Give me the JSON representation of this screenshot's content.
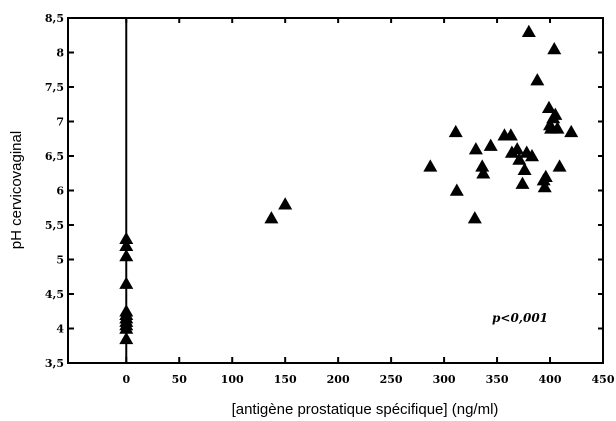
{
  "chart_data": {
    "type": "scatter",
    "xlabel": "[antigène prostatique spécifique] (ng/ml)",
    "ylabel": "pH cervicovaginal",
    "xlim": [
      -55,
      450
    ],
    "ylim": [
      3.5,
      8.5
    ],
    "xticks": [
      0,
      50,
      100,
      150,
      200,
      250,
      300,
      350,
      400,
      450
    ],
    "xtick_labels": [
      "0",
      "50",
      "100",
      "150",
      "200",
      "250",
      "300",
      "350",
      "400",
      "450"
    ],
    "yticks": [
      3.5,
      4,
      4.5,
      5,
      5.5,
      6,
      6.5,
      7,
      7.5,
      8,
      8.5
    ],
    "ytick_labels": [
      "3,5",
      "4",
      "4,5",
      "5",
      "5,5",
      "6",
      "6,5",
      "7",
      "7,5",
      "8",
      "8,5"
    ],
    "annotation": "p<0,001",
    "vertical_reference_x": 0,
    "marker": "triangle",
    "points": [
      [
        0,
        5.3
      ],
      [
        0,
        5.2
      ],
      [
        0,
        5.05
      ],
      [
        0,
        4.65
      ],
      [
        0,
        4.25
      ],
      [
        0,
        4.2
      ],
      [
        0,
        4.15
      ],
      [
        0,
        4.1
      ],
      [
        0,
        4.05
      ],
      [
        0,
        4.0
      ],
      [
        0,
        3.85
      ],
      [
        137,
        5.6
      ],
      [
        150,
        5.8
      ],
      [
        287,
        6.35
      ],
      [
        311,
        6.85
      ],
      [
        312,
        6.0
      ],
      [
        329,
        5.6
      ],
      [
        330,
        6.6
      ],
      [
        336,
        6.35
      ],
      [
        337,
        6.25
      ],
      [
        344,
        6.65
      ],
      [
        357,
        6.8
      ],
      [
        363,
        6.8
      ],
      [
        364,
        6.55
      ],
      [
        369,
        6.6
      ],
      [
        371,
        6.45
      ],
      [
        374,
        6.1
      ],
      [
        376,
        6.3
      ],
      [
        378,
        6.55
      ],
      [
        380,
        8.3
      ],
      [
        383,
        6.5
      ],
      [
        388,
        7.6
      ],
      [
        394,
        6.15
      ],
      [
        395,
        6.05
      ],
      [
        396,
        6.2
      ],
      [
        399,
        7.2
      ],
      [
        400,
        6.95
      ],
      [
        401,
        6.9
      ],
      [
        403,
        7.05
      ],
      [
        404,
        8.05
      ],
      [
        405,
        7.1
      ],
      [
        407,
        6.9
      ],
      [
        409,
        6.35
      ],
      [
        420,
        6.85
      ]
    ]
  }
}
